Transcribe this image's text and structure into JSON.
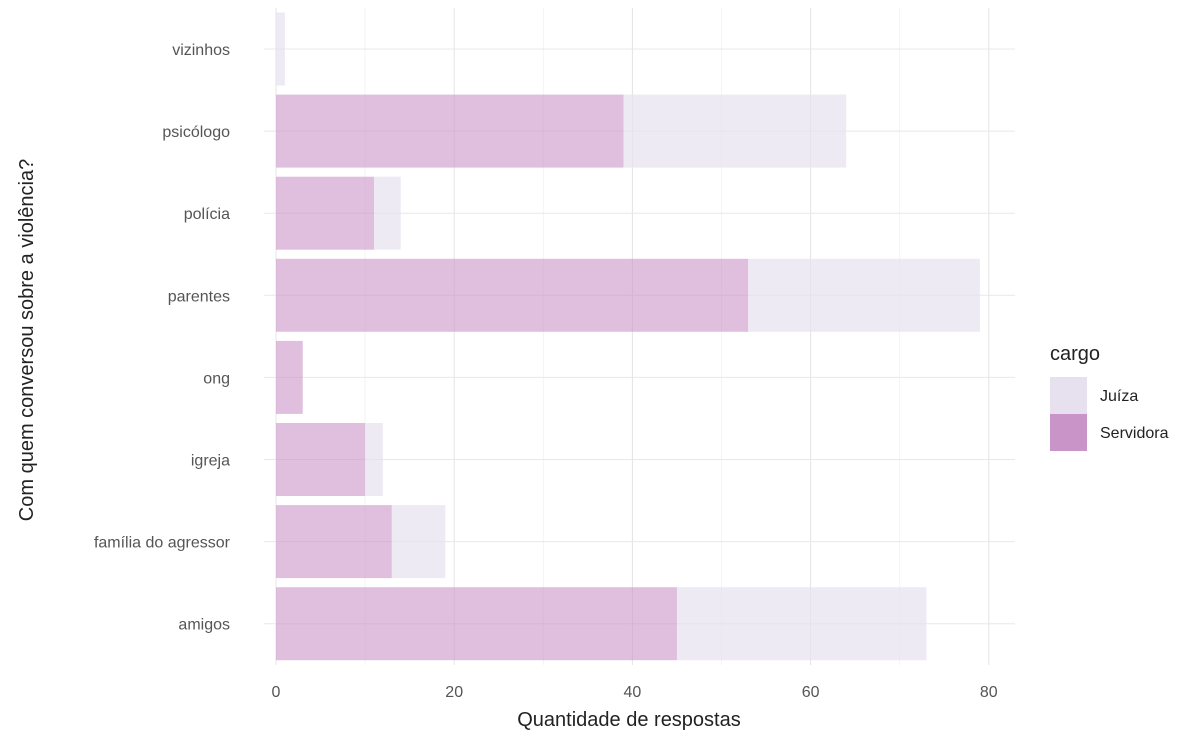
{
  "chart_data": {
    "type": "bar",
    "orientation": "horizontal",
    "stacked": true,
    "categories": [
      "vizinhos",
      "psicólogo",
      "polícia",
      "parentes",
      "ong",
      "igreja",
      "família do agressor",
      "amigos"
    ],
    "series": [
      {
        "name": "Servidora",
        "color": "#c994c7",
        "values": [
          0,
          39,
          11,
          53,
          3,
          10,
          13,
          45
        ]
      },
      {
        "name": "Juíza",
        "color": "#e7e1ef",
        "values": [
          1,
          25,
          3,
          26,
          0,
          2,
          6,
          28
        ]
      }
    ],
    "xlabel": "Quantidade de respostas",
    "ylabel": "Com quem conversou sobre a violência?",
    "xlim": [
      0,
      83
    ],
    "xticks": [
      0,
      20,
      40,
      60,
      80
    ],
    "grid": true,
    "legend": {
      "title": "cargo",
      "position": "right",
      "entries": [
        {
          "name": "Juíza",
          "color": "#e7e1ef"
        },
        {
          "name": "Servidora",
          "color": "#c994c7"
        }
      ]
    }
  }
}
